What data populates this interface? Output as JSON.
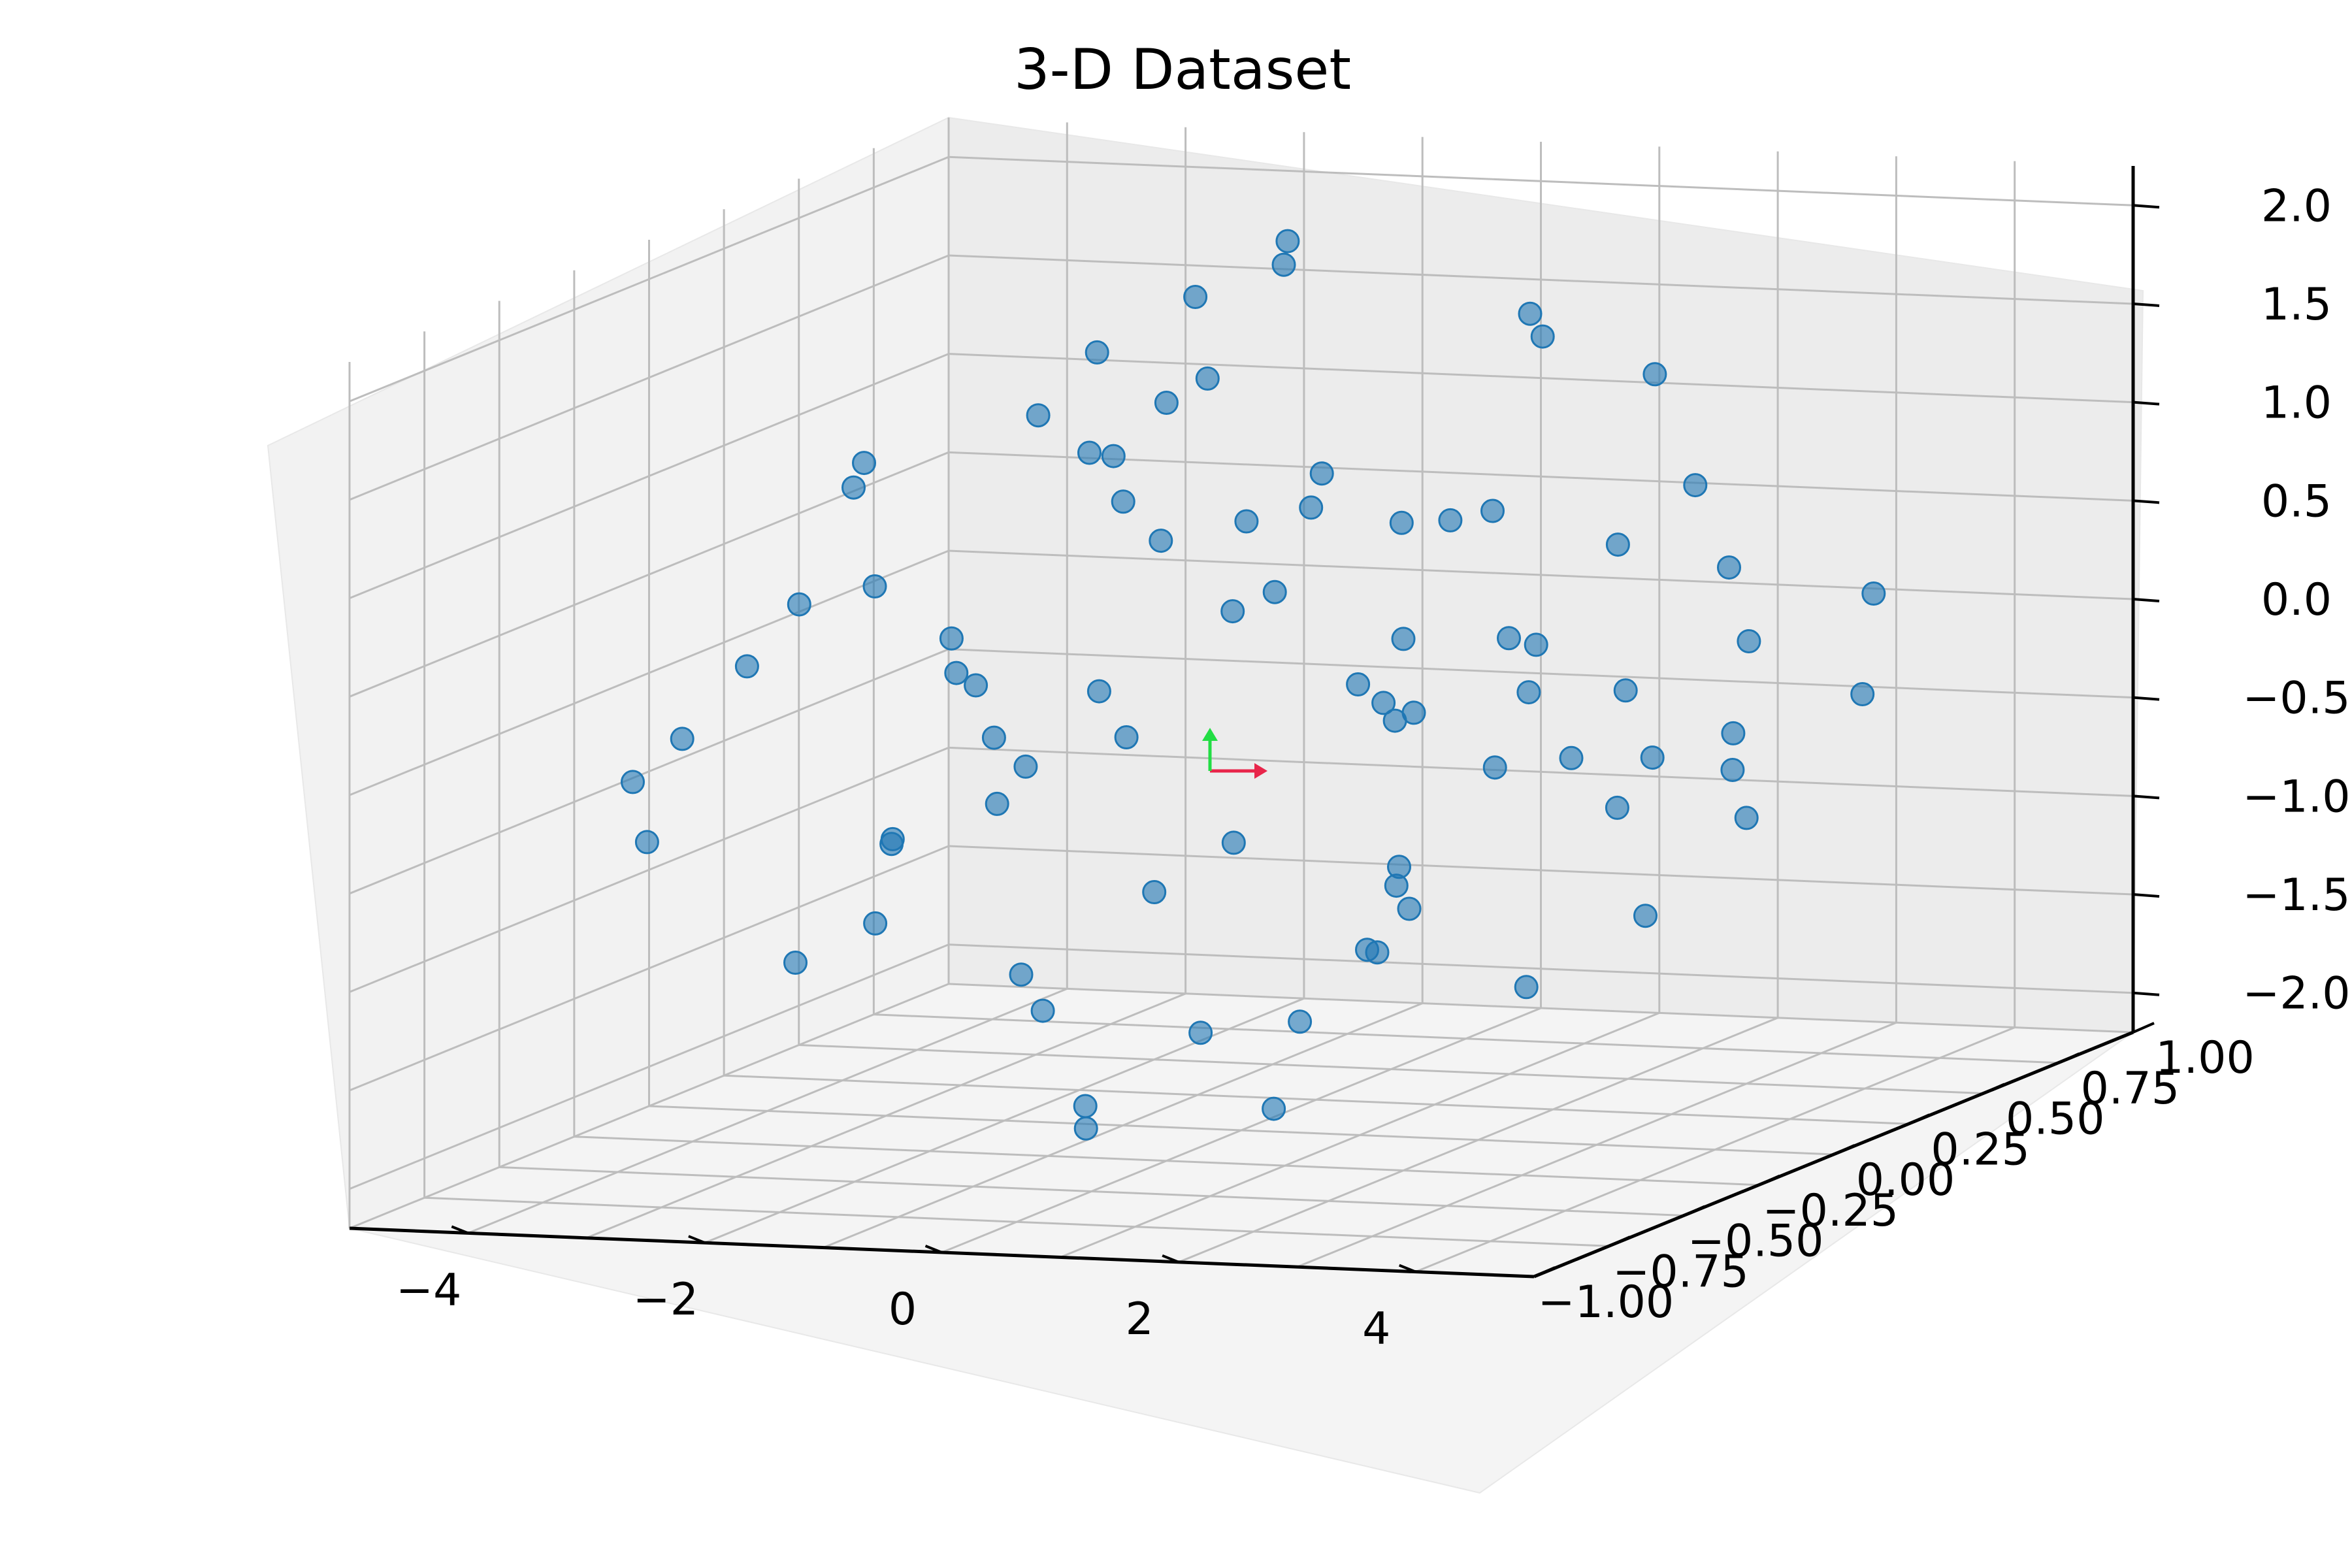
{
  "chart_data": {
    "type": "scatter",
    "title": "3-D Dataset",
    "xlabel": "",
    "ylabel": "",
    "zlabel": "",
    "xlim": [
      -5,
      5
    ],
    "ylim": [
      -1.0,
      1.0
    ],
    "zlim": [
      -2.2,
      2.2
    ],
    "x_ticks": [
      "−4",
      "−2",
      "0",
      "2",
      "4"
    ],
    "y_ticks": [
      "−1.00",
      "−0.75",
      "−0.50",
      "−0.25",
      "0.00",
      "0.25",
      "0.50",
      "0.75",
      "1.00"
    ],
    "z_ticks": [
      "−2.0",
      "−1.5",
      "−1.0",
      "−0.5",
      "0.0",
      "0.5",
      "1.0",
      "1.5",
      "2.0"
    ],
    "grid": true,
    "marker_color": "#1f77b4",
    "marker_alpha": 0.6,
    "series": [
      {
        "points": [
          [
            -4.0,
            -0.45,
            -0.25
          ],
          [
            -3.6,
            0.2,
            0.35
          ],
          [
            -3.5,
            -0.6,
            -0.45
          ],
          [
            -3.4,
            0.05,
            0.95
          ],
          [
            -3.2,
            0.45,
            -0.9
          ],
          [
            -3.1,
            -0.25,
            0.55
          ],
          [
            -3.0,
            0.3,
            -0.2
          ],
          [
            -2.95,
            -0.7,
            0.15
          ],
          [
            -2.8,
            0.6,
            0.8
          ],
          [
            -2.7,
            -0.1,
            -0.75
          ],
          [
            -2.6,
            0.35,
            1.15
          ],
          [
            -2.5,
            -0.5,
            -1.1
          ],
          [
            -2.45,
            0.7,
            0.3
          ],
          [
            -2.3,
            -0.35,
            1.35
          ],
          [
            -2.2,
            0.15,
            -0.5
          ],
          [
            -2.15,
            -0.8,
            0.6
          ],
          [
            -2.0,
            0.5,
            -1.35
          ],
          [
            -1.9,
            -0.2,
            0.2
          ],
          [
            -1.85,
            0.25,
            1.55
          ],
          [
            -1.7,
            -0.55,
            -0.85
          ],
          [
            -1.6,
            0.65,
            0.45
          ],
          [
            -1.55,
            -0.05,
            -1.6
          ],
          [
            -1.4,
            0.4,
            1.75
          ],
          [
            -1.3,
            -0.65,
            -0.35
          ],
          [
            -1.25,
            0.1,
            0.9
          ],
          [
            -1.1,
            -0.3,
            -1.25
          ],
          [
            -1.0,
            0.55,
            1.95
          ],
          [
            -0.95,
            -0.45,
            0.05
          ],
          [
            -0.85,
            0.2,
            -1.85
          ],
          [
            -0.7,
            -0.15,
            1.3
          ],
          [
            -0.6,
            0.75,
            -0.6
          ],
          [
            -0.55,
            -0.75,
            0.75
          ],
          [
            -0.4,
            0.3,
            2.0
          ],
          [
            -0.3,
            -0.4,
            -1.95
          ],
          [
            -0.2,
            0.05,
            0.4
          ],
          [
            -0.1,
            0.6,
            -1.45
          ],
          [
            0.0,
            -0.25,
            1.65
          ],
          [
            0.1,
            0.35,
            -0.15
          ],
          [
            0.2,
            -0.6,
            -1.7
          ],
          [
            0.3,
            0.15,
            1.05
          ],
          [
            0.4,
            -0.05,
            -2.05
          ],
          [
            0.5,
            0.5,
            0.6
          ],
          [
            0.6,
            -0.35,
            1.85
          ],
          [
            0.7,
            0.25,
            -1.0
          ],
          [
            0.8,
            -0.7,
            0.25
          ],
          [
            0.9,
            0.65,
            1.45
          ],
          [
            1.0,
            -0.2,
            -1.5
          ],
          [
            1.1,
            0.1,
            0.85
          ],
          [
            1.2,
            -0.5,
            -0.4
          ],
          [
            1.3,
            0.45,
            1.7
          ],
          [
            1.4,
            -0.1,
            -1.2
          ],
          [
            1.5,
            0.3,
            0.15
          ],
          [
            1.6,
            -0.4,
            1.25
          ],
          [
            1.7,
            0.7,
            -0.7
          ],
          [
            1.8,
            -0.6,
            0.95
          ],
          [
            1.9,
            0.2,
            -1.55
          ],
          [
            2.0,
            -0.25,
            0.5
          ],
          [
            2.1,
            0.55,
            1.35
          ],
          [
            2.2,
            -0.45,
            -0.95
          ],
          [
            2.3,
            0.05,
            0.05
          ],
          [
            2.4,
            0.4,
            -1.3
          ],
          [
            2.5,
            -0.15,
            1.1
          ],
          [
            2.6,
            0.6,
            0.35
          ],
          [
            2.7,
            -0.55,
            -0.55
          ],
          [
            2.8,
            0.15,
            0.75
          ],
          [
            2.9,
            -0.3,
            -0.1
          ],
          [
            3.0,
            0.5,
            -0.85
          ],
          [
            3.1,
            -0.65,
            0.4
          ],
          [
            3.2,
            0.25,
            1.0
          ],
          [
            3.3,
            -0.05,
            -0.45
          ],
          [
            3.4,
            0.35,
            0.15
          ],
          [
            3.5,
            -0.4,
            0.6
          ],
          [
            3.6,
            0.65,
            -0.3
          ],
          [
            3.75,
            -0.2,
            0.25
          ],
          [
            3.9,
            0.1,
            -0.15
          ],
          [
            4.05,
            -0.5,
            0.1
          ],
          [
            4.2,
            0.45,
            0.35
          ],
          [
            4.4,
            -0.1,
            -0.2
          ],
          [
            -1.2,
            0.0,
            0.0
          ],
          [
            1.2,
            0.0,
            0.0
          ]
        ]
      }
    ]
  },
  "annotations": {
    "red_arrow_color": "#e8254a",
    "green_arrow_color": "#22dd44"
  }
}
